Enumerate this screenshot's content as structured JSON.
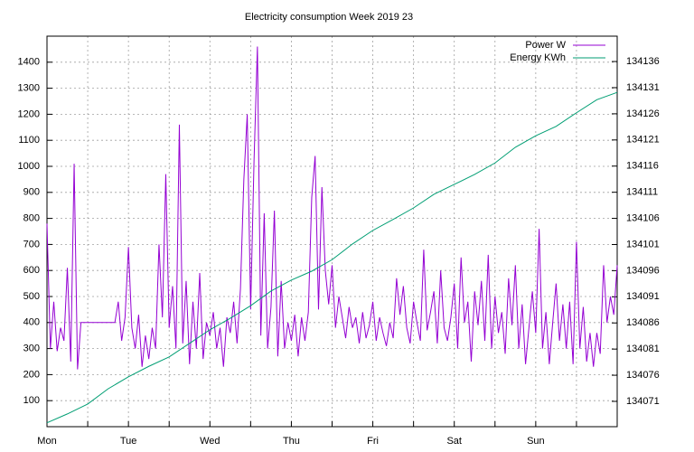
{
  "chart_data": {
    "type": "line",
    "title": "Electricity consumption Week 2019 23",
    "xlim": [
      0,
      168
    ],
    "xticks": [
      {
        "value": 0,
        "label": "Mon"
      },
      {
        "value": 24,
        "label": "Tue"
      },
      {
        "value": 48,
        "label": "Wed"
      },
      {
        "value": 72,
        "label": "Thu"
      },
      {
        "value": 96,
        "label": "Fri"
      },
      {
        "value": 120,
        "label": "Sat"
      },
      {
        "value": 144,
        "label": "Sun"
      }
    ],
    "xgrid": [
      12,
      36,
      60,
      84,
      108,
      132,
      156
    ],
    "ylim": [
      0,
      1500
    ],
    "yticks": [
      100,
      200,
      300,
      400,
      500,
      600,
      700,
      800,
      900,
      1000,
      1100,
      1200,
      1300,
      1400
    ],
    "y2lim": [
      134066.16,
      134140.85
    ],
    "y2ticks": [
      134071,
      134076,
      134081,
      134086,
      134091,
      134096,
      134101,
      134106,
      134111,
      134116,
      134121,
      134126,
      134131,
      134136
    ],
    "grid": true,
    "legend": "top-right",
    "series": [
      {
        "name": "Power W",
        "color": "#9400d3",
        "x": [
          0,
          1,
          2,
          3,
          4,
          5,
          6,
          7,
          8,
          9,
          10,
          11,
          12,
          13,
          14,
          15,
          16,
          17,
          18,
          19,
          20,
          21,
          22,
          23,
          24,
          25,
          26,
          27,
          28,
          29,
          30,
          31,
          32,
          33,
          34,
          35,
          36,
          37,
          38,
          39,
          40,
          41,
          42,
          43,
          44,
          45,
          46,
          47,
          48,
          49,
          50,
          51,
          52,
          53,
          54,
          55,
          56,
          57,
          58,
          59,
          60,
          61,
          62,
          63,
          64,
          65,
          66,
          67,
          68,
          69,
          70,
          71,
          72,
          73,
          74,
          75,
          76,
          77,
          78,
          79,
          80,
          81,
          82,
          83,
          84,
          85,
          86,
          87,
          88,
          89,
          90,
          91,
          92,
          93,
          94,
          95,
          96,
          97,
          98,
          99,
          100,
          101,
          102,
          103,
          104,
          105,
          106,
          107,
          108,
          109,
          110,
          111,
          112,
          113,
          114,
          115,
          116,
          117,
          118,
          119,
          120,
          121,
          122,
          123,
          124,
          125,
          126,
          127,
          128,
          129,
          130,
          131,
          132,
          133,
          134,
          135,
          136,
          137,
          138,
          139,
          140,
          141,
          142,
          143,
          144,
          145,
          146,
          147,
          148,
          149,
          150,
          151,
          152,
          153,
          154,
          155,
          156,
          157,
          158,
          159,
          160,
          161,
          162,
          163,
          164,
          165,
          166,
          167,
          168
        ],
        "values": [
          780,
          300,
          480,
          290,
          380,
          330,
          610,
          250,
          1010,
          220,
          400,
          400,
          400,
          400,
          400,
          400,
          400,
          400,
          400,
          400,
          400,
          480,
          330,
          420,
          690,
          380,
          300,
          430,
          230,
          350,
          260,
          380,
          300,
          700,
          420,
          970,
          380,
          540,
          300,
          1160,
          320,
          560,
          240,
          480,
          300,
          590,
          260,
          400,
          350,
          440,
          300,
          380,
          230,
          420,
          360,
          480,
          320,
          530,
          950,
          1200,
          450,
          1020,
          1460,
          350,
          820,
          300,
          460,
          830,
          270,
          560,
          300,
          400,
          330,
          430,
          270,
          420,
          330,
          440,
          880,
          1040,
          450,
          920,
          600,
          470,
          620,
          380,
          500,
          420,
          340,
          460,
          380,
          420,
          320,
          440,
          340,
          390,
          480,
          330,
          420,
          360,
          310,
          400,
          340,
          570,
          430,
          540,
          380,
          320,
          480,
          400,
          330,
          680,
          370,
          440,
          520,
          320,
          600,
          380,
          330,
          420,
          550,
          300,
          650,
          400,
          480,
          250,
          520,
          390,
          560,
          330,
          660,
          300,
          500,
          360,
          440,
          280,
          570,
          390,
          620,
          300,
          470,
          240,
          380,
          520,
          360,
          760,
          300,
          440,
          240,
          400,
          550,
          330,
          470,
          300,
          480,
          240,
          710,
          300,
          460,
          250,
          360,
          230,
          360,
          280,
          620,
          400,
          500,
          430,
          620
        ]
      },
      {
        "name": "Energy KWh",
        "color": "#009e73",
        "axis": "y2",
        "x": [
          0,
          6,
          12,
          18,
          24,
          30,
          36,
          42,
          48,
          54,
          60,
          66,
          72,
          78,
          84,
          90,
          96,
          102,
          108,
          114,
          120,
          126,
          132,
          138,
          144,
          150,
          156,
          162,
          168
        ],
        "values": [
          134066.9,
          134068.6,
          134070.5,
          134073.4,
          134075.7,
          134077.7,
          134079.5,
          134082.1,
          134084.7,
          134086.9,
          134089.3,
          134092.1,
          134094.2,
          134095.9,
          134098.1,
          134101.1,
          134103.7,
          134105.8,
          134108.0,
          134110.6,
          134112.5,
          134114.4,
          134116.6,
          134119.6,
          134121.8,
          134123.6,
          134126.2,
          134128.7,
          134130.1
        ]
      }
    ]
  }
}
